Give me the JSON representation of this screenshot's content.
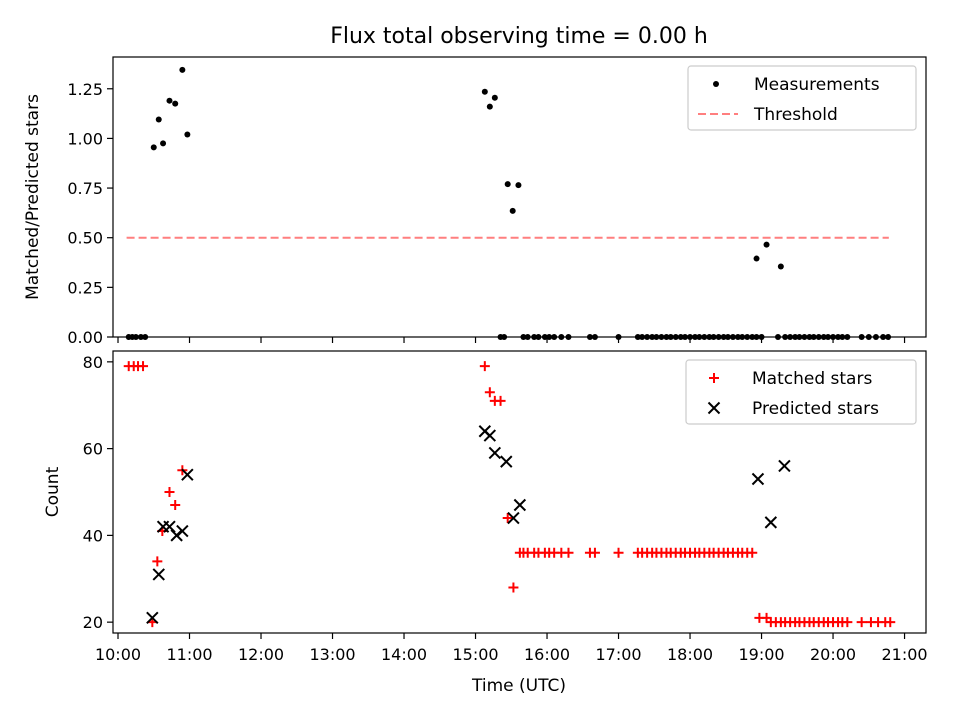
{
  "title": "Flux total observing time = 0.00 h",
  "colors": {
    "measurements": "#000000",
    "threshold": "#ff7f7f",
    "matched": "#ff0000",
    "predicted": "#000000"
  },
  "chart_data": [
    {
      "type": "scatter",
      "ylabel": "Matched/Predicted stars",
      "xlabel": "",
      "xlim": [
        9.93,
        21.3
      ],
      "ylim": [
        0,
        1.41
      ],
      "yticks": [
        0,
        0.25,
        0.5,
        0.75,
        1.0,
        1.25
      ],
      "ytick_labels": [
        "0.00",
        "0.25",
        "0.50",
        "0.75",
        "1.00",
        "1.25"
      ],
      "xticks": [
        10,
        11,
        12,
        13,
        14,
        15,
        16,
        17,
        18,
        19,
        20,
        21
      ],
      "xtick_labels_visible": false,
      "grid": false,
      "legend": {
        "position": "top-right",
        "entries": [
          "Measurements",
          "Threshold"
        ]
      },
      "series": [
        {
          "name": "Measurements",
          "marker": "dot",
          "x": [
            10.15,
            10.2,
            10.25,
            10.32,
            10.38,
            10.5,
            10.57,
            10.63,
            10.72,
            10.8,
            10.9,
            10.97,
            15.13,
            15.2,
            15.27,
            15.35,
            15.45,
            15.52,
            15.6,
            15.4,
            15.67,
            15.73,
            15.82,
            15.88,
            15.97,
            16.03,
            16.1,
            16.2,
            16.3,
            16.6,
            16.67,
            17.0,
            17.27,
            17.33,
            17.4,
            17.47,
            17.53,
            17.6,
            17.67,
            17.73,
            17.8,
            17.87,
            17.93,
            18.0,
            18.07,
            18.13,
            18.2,
            18.27,
            18.33,
            18.4,
            18.47,
            18.53,
            18.6,
            18.67,
            18.73,
            18.8,
            18.87,
            18.93,
            19.0,
            18.93,
            19.07,
            19.27,
            19.23,
            19.33,
            19.4,
            19.47,
            19.53,
            19.6,
            19.67,
            19.73,
            19.8,
            19.87,
            19.93,
            20.0,
            20.07,
            20.13,
            20.2,
            20.4,
            20.5,
            20.6,
            20.7,
            20.77
          ],
          "y": [
            0,
            0,
            0,
            0,
            0,
            0.955,
            1.095,
            0.975,
            1.19,
            1.175,
            1.345,
            1.02,
            1.235,
            1.16,
            1.205,
            0,
            0.77,
            0.635,
            0.765,
            0,
            0,
            0,
            0,
            0,
            0,
            0,
            0,
            0,
            0,
            0,
            0,
            0,
            0,
            0,
            0,
            0,
            0,
            0,
            0,
            0,
            0,
            0,
            0,
            0,
            0,
            0,
            0,
            0,
            0,
            0,
            0,
            0,
            0,
            0,
            0,
            0,
            0,
            0,
            0,
            0.395,
            0.465,
            0.355,
            0,
            0,
            0,
            0,
            0,
            0,
            0,
            0,
            0,
            0,
            0,
            0,
            0,
            0,
            0,
            0,
            0,
            0,
            0,
            0
          ]
        },
        {
          "name": "Threshold",
          "style": "dashed",
          "x": [
            10.12,
            20.78
          ],
          "y": [
            0.5,
            0.5
          ]
        }
      ]
    },
    {
      "type": "scatter",
      "ylabel": "Count",
      "xlabel": "Time (UTC)",
      "xlim": [
        9.93,
        21.3
      ],
      "ylim": [
        17.5,
        82.5
      ],
      "yticks": [
        20,
        40,
        60,
        80
      ],
      "ytick_labels": [
        "20",
        "40",
        "60",
        "80"
      ],
      "xticks": [
        10,
        11,
        12,
        13,
        14,
        15,
        16,
        17,
        18,
        19,
        20,
        21
      ],
      "xtick_labels": [
        "10:00",
        "11:00",
        "12:00",
        "13:00",
        "14:00",
        "15:00",
        "16:00",
        "17:00",
        "18:00",
        "19:00",
        "20:00",
        "21:00"
      ],
      "grid": false,
      "legend": {
        "position": "top-right",
        "entries": [
          "Matched stars",
          "Predicted stars"
        ]
      },
      "series": [
        {
          "name": "Matched stars",
          "marker": "plus",
          "x": [
            10.15,
            10.22,
            10.28,
            10.35,
            10.48,
            10.55,
            10.62,
            10.72,
            10.8,
            10.9,
            15.13,
            15.2,
            15.27,
            15.35,
            15.45,
            15.53,
            15.62,
            15.67,
            15.73,
            15.82,
            15.88,
            15.97,
            16.03,
            16.1,
            16.2,
            16.3,
            16.6,
            16.67,
            17.0,
            17.27,
            17.33,
            17.4,
            17.47,
            17.53,
            17.6,
            17.67,
            17.73,
            17.8,
            17.87,
            17.93,
            18.0,
            18.07,
            18.13,
            18.2,
            18.27,
            18.33,
            18.4,
            18.47,
            18.53,
            18.6,
            18.67,
            18.73,
            18.8,
            18.87,
            18.97,
            19.07,
            19.13,
            19.2,
            19.27,
            19.33,
            19.4,
            19.47,
            19.53,
            19.6,
            19.67,
            19.73,
            19.8,
            19.87,
            19.93,
            20.0,
            20.07,
            20.13,
            20.2,
            20.4,
            20.53,
            20.63,
            20.73,
            20.8
          ],
          "y": [
            79,
            79,
            79,
            79,
            20,
            34,
            41,
            50,
            47,
            55,
            79,
            73,
            71,
            71,
            44,
            28,
            36,
            36,
            36,
            36,
            36,
            36,
            36,
            36,
            36,
            36,
            36,
            36,
            36,
            36,
            36,
            36,
            36,
            36,
            36,
            36,
            36,
            36,
            36,
            36,
            36,
            36,
            36,
            36,
            36,
            36,
            36,
            36,
            36,
            36,
            36,
            36,
            36,
            36,
            21,
            21,
            20,
            20,
            20,
            20,
            20,
            20,
            20,
            20,
            20,
            20,
            20,
            20,
            20,
            20,
            20,
            20,
            20,
            20,
            20,
            20,
            20,
            20
          ]
        },
        {
          "name": "Predicted stars",
          "marker": "x",
          "x": [
            10.48,
            10.57,
            10.63,
            10.72,
            10.82,
            10.9,
            10.97,
            15.13,
            15.2,
            15.27,
            15.43,
            15.53,
            15.62,
            18.95,
            19.13,
            19.32
          ],
          "y": [
            21,
            31,
            42,
            42,
            40,
            41,
            54,
            64,
            63,
            59,
            57,
            44,
            47,
            53,
            43,
            56
          ]
        }
      ]
    }
  ]
}
